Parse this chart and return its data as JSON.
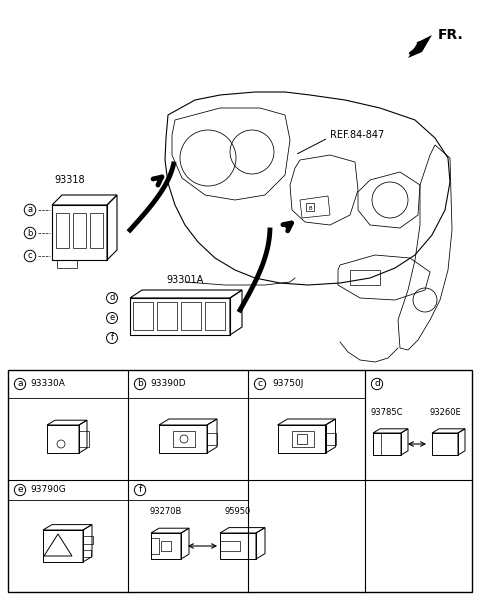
{
  "bg_color": "#ffffff",
  "fr_label": "FR.",
  "ref_label": "REF.84-847",
  "part_93318": "93318",
  "part_93301A": "93301A",
  "table_headers_row0": [
    {
      "circle": "a",
      "part": "93330A"
    },
    {
      "circle": "b",
      "part": "93390D"
    },
    {
      "circle": "c",
      "part": "93750J"
    },
    {
      "circle": "d",
      "part": ""
    }
  ],
  "table_headers_row1": [
    {
      "circle": "e",
      "part": "93790G"
    },
    {
      "circle": "f",
      "part": ""
    }
  ],
  "sub_d_left": "93785C",
  "sub_d_right": "93260E",
  "sub_f_left": "93270B",
  "sub_f_right": "95950",
  "abc_labels": [
    "a",
    "b",
    "c"
  ],
  "def_labels": [
    "d",
    "e",
    "f"
  ]
}
